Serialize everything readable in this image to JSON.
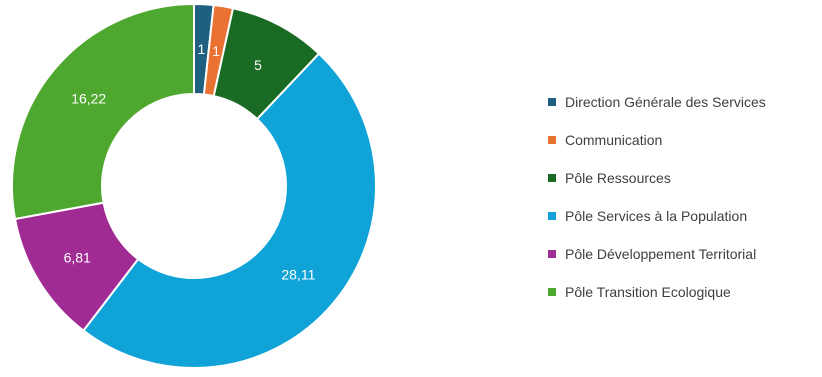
{
  "chart_data": {
    "type": "pie",
    "subtype": "doughnut",
    "categories": [
      "Direction Générale des Services",
      "Communication",
      "Pôle Ressources",
      "Pôle Services à la Population",
      "Pôle Développement Territorial",
      "Pôle Transition Ecologique"
    ],
    "values": [
      1,
      1,
      5,
      28.11,
      6.81,
      16.22
    ],
    "data_labels": [
      "1",
      "1",
      "5",
      "28,11",
      "6,81",
      "16,22"
    ],
    "colors": [
      "#1f5f7f",
      "#e97132",
      "#196b24",
      "#0fa3d8",
      "#a02b93",
      "#4ea72e"
    ],
    "legend_position": "right",
    "title": "",
    "start_angle_deg": 0,
    "direction": "clockwise"
  }
}
